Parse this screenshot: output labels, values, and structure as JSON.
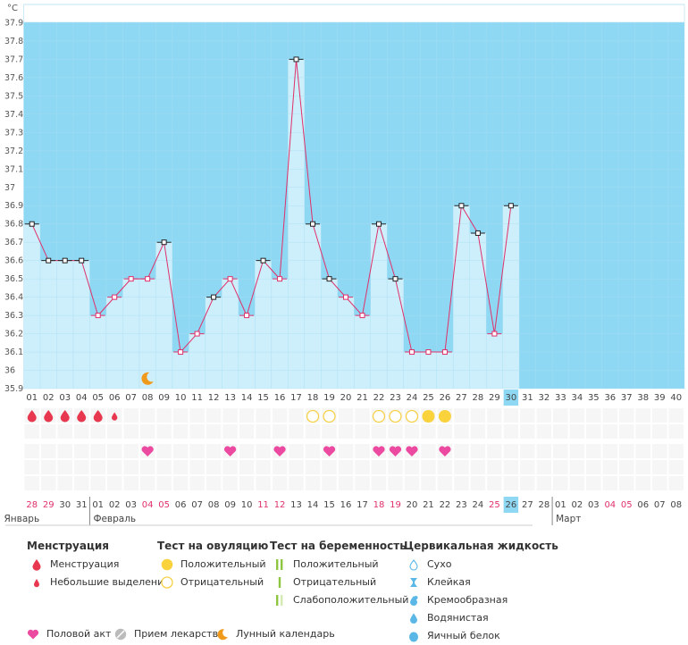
{
  "chart_data": {
    "type": "line",
    "unit": "°C",
    "ylim": [
      35.9,
      38.0
    ],
    "yticks": [
      "35.9",
      "36",
      "36.1",
      "36.2",
      "36.3",
      "36.4",
      "36.5",
      "36.6",
      "36.7",
      "36.8",
      "36.9",
      "37",
      "37.1",
      "37.2",
      "37.3",
      "37.4",
      "37.5",
      "37.6",
      "37.7",
      "37.8",
      "37.9"
    ],
    "x_labels": [
      "01",
      "02",
      "03",
      "04",
      "05",
      "06",
      "07",
      "08",
      "09",
      "10",
      "11",
      "12",
      "13",
      "14",
      "15",
      "16",
      "17",
      "18",
      "19",
      "20",
      "21",
      "22",
      "23",
      "24",
      "25",
      "26",
      "27",
      "28",
      "29",
      "30",
      "31",
      "32",
      "33",
      "34",
      "35",
      "36",
      "37",
      "38",
      "39",
      "40"
    ],
    "current_day": "30",
    "temperatures": [
      36.8,
      36.6,
      36.6,
      36.6,
      36.3,
      36.4,
      36.5,
      36.5,
      36.7,
      36.1,
      36.2,
      36.4,
      36.5,
      36.3,
      36.6,
      36.5,
      37.7,
      36.8,
      36.5,
      36.4,
      36.3,
      36.8,
      36.5,
      36.1,
      36.1,
      36.1,
      36.9,
      36.75,
      36.2,
      36.9
    ],
    "marker_types": [
      "o",
      "o",
      "o",
      "o",
      "p",
      "p",
      "p",
      "p",
      "o",
      "p",
      "p",
      "o",
      "p",
      "p",
      "o",
      "p",
      "o",
      "o",
      "o",
      "p",
      "p",
      "o",
      "o",
      "p",
      "p",
      "p",
      "o",
      "o",
      "p",
      "o"
    ],
    "menstruation": [
      "drop",
      "drop",
      "drop",
      "drop",
      "drop",
      "small",
      "",
      "",
      "",
      "",
      "",
      "",
      "",
      "",
      "",
      "",
      "",
      "",
      "",
      "",
      "",
      "",
      "",
      "",
      "",
      "",
      "",
      "",
      "",
      ""
    ],
    "ovulation_tests": [
      "",
      "",
      "",
      "",
      "",
      "",
      "",
      "",
      "",
      "",
      "",
      "",
      "",
      "",
      "",
      "",
      "",
      "neg",
      "neg",
      "",
      "",
      "neg",
      "neg",
      "neg",
      "pos",
      "pos",
      "",
      "",
      "",
      ""
    ],
    "intercourse": [
      "",
      "",
      "",
      "",
      "",
      "",
      "",
      "yes",
      "",
      "",
      "",
      "",
      "yes",
      "",
      "",
      "yes",
      "",
      "",
      "yes",
      "",
      "",
      "yes",
      "yes",
      "yes",
      "",
      "yes",
      "",
      "",
      "",
      ""
    ],
    "moon_day": "08",
    "dates": [
      {
        "d": "28",
        "red": true
      },
      {
        "d": "29",
        "red": true
      },
      {
        "d": "30",
        "red": false
      },
      {
        "d": "31",
        "red": false
      },
      {
        "d": "01",
        "red": false
      },
      {
        "d": "02",
        "red": false
      },
      {
        "d": "03",
        "red": false
      },
      {
        "d": "04",
        "red": true
      },
      {
        "d": "05",
        "red": true
      },
      {
        "d": "06",
        "red": false
      },
      {
        "d": "07",
        "red": false
      },
      {
        "d": "08",
        "red": false
      },
      {
        "d": "09",
        "red": false
      },
      {
        "d": "10",
        "red": false
      },
      {
        "d": "11",
        "red": true
      },
      {
        "d": "12",
        "red": true
      },
      {
        "d": "13",
        "red": false
      },
      {
        "d": "14",
        "red": false
      },
      {
        "d": "15",
        "red": false
      },
      {
        "d": "16",
        "red": false
      },
      {
        "d": "17",
        "red": false
      },
      {
        "d": "18",
        "red": true
      },
      {
        "d": "19",
        "red": true
      },
      {
        "d": "20",
        "red": false
      },
      {
        "d": "21",
        "red": false
      },
      {
        "d": "22",
        "red": false
      },
      {
        "d": "23",
        "red": false
      },
      {
        "d": "24",
        "red": false
      },
      {
        "d": "25",
        "red": true
      },
      {
        "d": "26",
        "red": false
      },
      {
        "d": "27",
        "red": false
      },
      {
        "d": "28",
        "red": false
      },
      {
        "d": "01",
        "red": false
      },
      {
        "d": "02",
        "red": false
      },
      {
        "d": "03",
        "red": false
      },
      {
        "d": "04",
        "red": true
      },
      {
        "d": "05",
        "red": true
      },
      {
        "d": "06",
        "red": false
      },
      {
        "d": "07",
        "red": false
      },
      {
        "d": "08",
        "red": false
      }
    ],
    "months": [
      {
        "name": "Январь",
        "start": 0
      },
      {
        "name": "Февраль",
        "start": 4
      },
      {
        "name": "Март",
        "start": 32
      }
    ]
  },
  "colors": {
    "sky": "#8ed8f3",
    "bar": "#cdeffb",
    "grid": "#a9def3",
    "line": "#e0306a",
    "drop": "#e8384f",
    "heart": "#ec4aa0",
    "ov_pos": "#f9d23c",
    "ov_neg": "#f6d148",
    "preg": "#8dc63f",
    "moon": "#f09a1c",
    "cervical": "#5bb8e6",
    "pill": "#bbbbbb",
    "date_red": "#e0306a",
    "highlight": "#8ed8f3"
  },
  "legend": {
    "menstruation": {
      "title": "Менструация",
      "items": [
        "Менструация",
        "Небольшие выделения"
      ]
    },
    "ovulation": {
      "title": "Тест на овуляцию",
      "items": [
        "Положительный",
        "Отрицательный"
      ]
    },
    "pregnancy": {
      "title": "Тест на беременность",
      "items": [
        "Положительный",
        "Отрицательный",
        "Слабоположительный"
      ]
    },
    "cervical": {
      "title": "Цервикальная жидкость",
      "items": [
        "Сухо",
        "Клейкая",
        "Кремообразная",
        "Водянистая",
        "Яичный белок"
      ]
    },
    "bottom": {
      "intercourse": "Половой акт",
      "pills": "Прием лекарств",
      "lunar": "Лунный календарь"
    }
  }
}
